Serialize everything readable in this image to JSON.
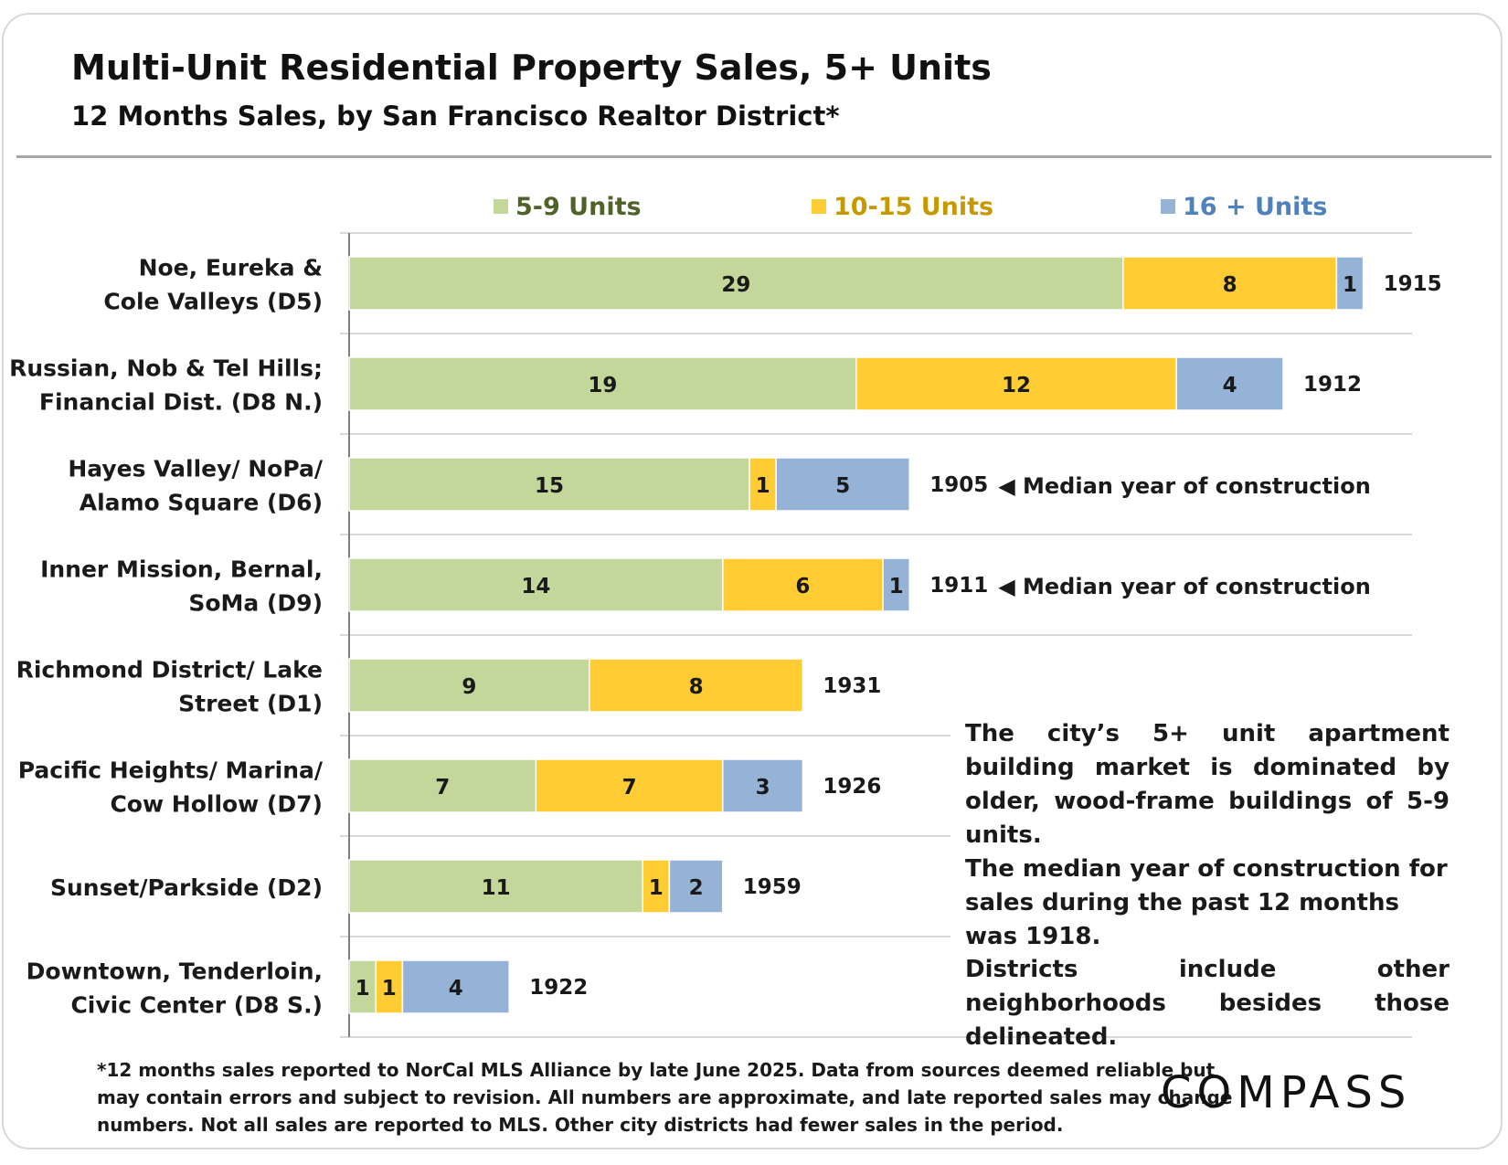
{
  "title": "Multi-Unit Residential Property Sales, 5+ Units",
  "subtitle": "12 Months Sales, by San Francisco Realtor District*",
  "colors": {
    "five_nine": "#c4d79b",
    "ten_fifteen": "#ffcc33",
    "sixteen_plus": "#95b3d7"
  },
  "chart_data": {
    "type": "bar",
    "orientation": "horizontal",
    "stacked": true,
    "categories": [
      [
        "Noe, Eureka &",
        "Cole Valleys (D5)"
      ],
      [
        "Russian, Nob & Tel Hills;",
        "Financial Dist. (D8 N.)"
      ],
      [
        "Hayes Valley/ NoPa/",
        "Alamo Square (D6)"
      ],
      [
        "Inner Mission, Bernal,",
        "SoMa (D9)"
      ],
      [
        "Richmond District/ Lake",
        "Street (D1)"
      ],
      [
        "Pacific Heights/ Marina/",
        "Cow Hollow (D7)"
      ],
      [
        "Sunset/Parkside (D2)"
      ],
      [
        "Downtown, Tenderloin,",
        "Civic Center (D8 S.)"
      ]
    ],
    "series": [
      {
        "name": "5-9 Units",
        "values": [
          29,
          19,
          15,
          14,
          9,
          7,
          11,
          1
        ]
      },
      {
        "name": "10-15 Units",
        "values": [
          8,
          12,
          1,
          6,
          8,
          7,
          1,
          1
        ]
      },
      {
        "name": "16 + Units",
        "values": [
          1,
          4,
          5,
          1,
          0,
          3,
          2,
          4
        ]
      }
    ],
    "median_year": [
      "1915",
      "1912",
      "1905",
      "1911",
      "1931",
      "1926",
      "1959",
      "1922"
    ],
    "annotations": [
      {
        "row": 2,
        "text": "◀ Median year of construction"
      },
      {
        "row": 3,
        "text": "◀ Median year of construction"
      }
    ],
    "legend_position": "top",
    "grid": "horizontal separators between rows",
    "xlim": [
      0,
      40
    ]
  },
  "notes": {
    "n1": "The city’s 5+ unit apartment building market is dominated by older, wood-frame buildings of 5-9 units.",
    "n2": "The median year of construction for sales during the past 12 months was 1918.",
    "n3": "Districts include other neighborhoods besides those delineated."
  },
  "footnote": {
    "line1": "*12 months sales reported to NorCal MLS Alliance by late June 2025. Data from sources deemed reliable but",
    "line2": "may contain errors and subject to revision. All numbers are approximate, and late reported sales may change",
    "line3": "numbers. Not all sales are reported to MLS. Other city districts had fewer sales in the period."
  },
  "logo": "COMPASS"
}
